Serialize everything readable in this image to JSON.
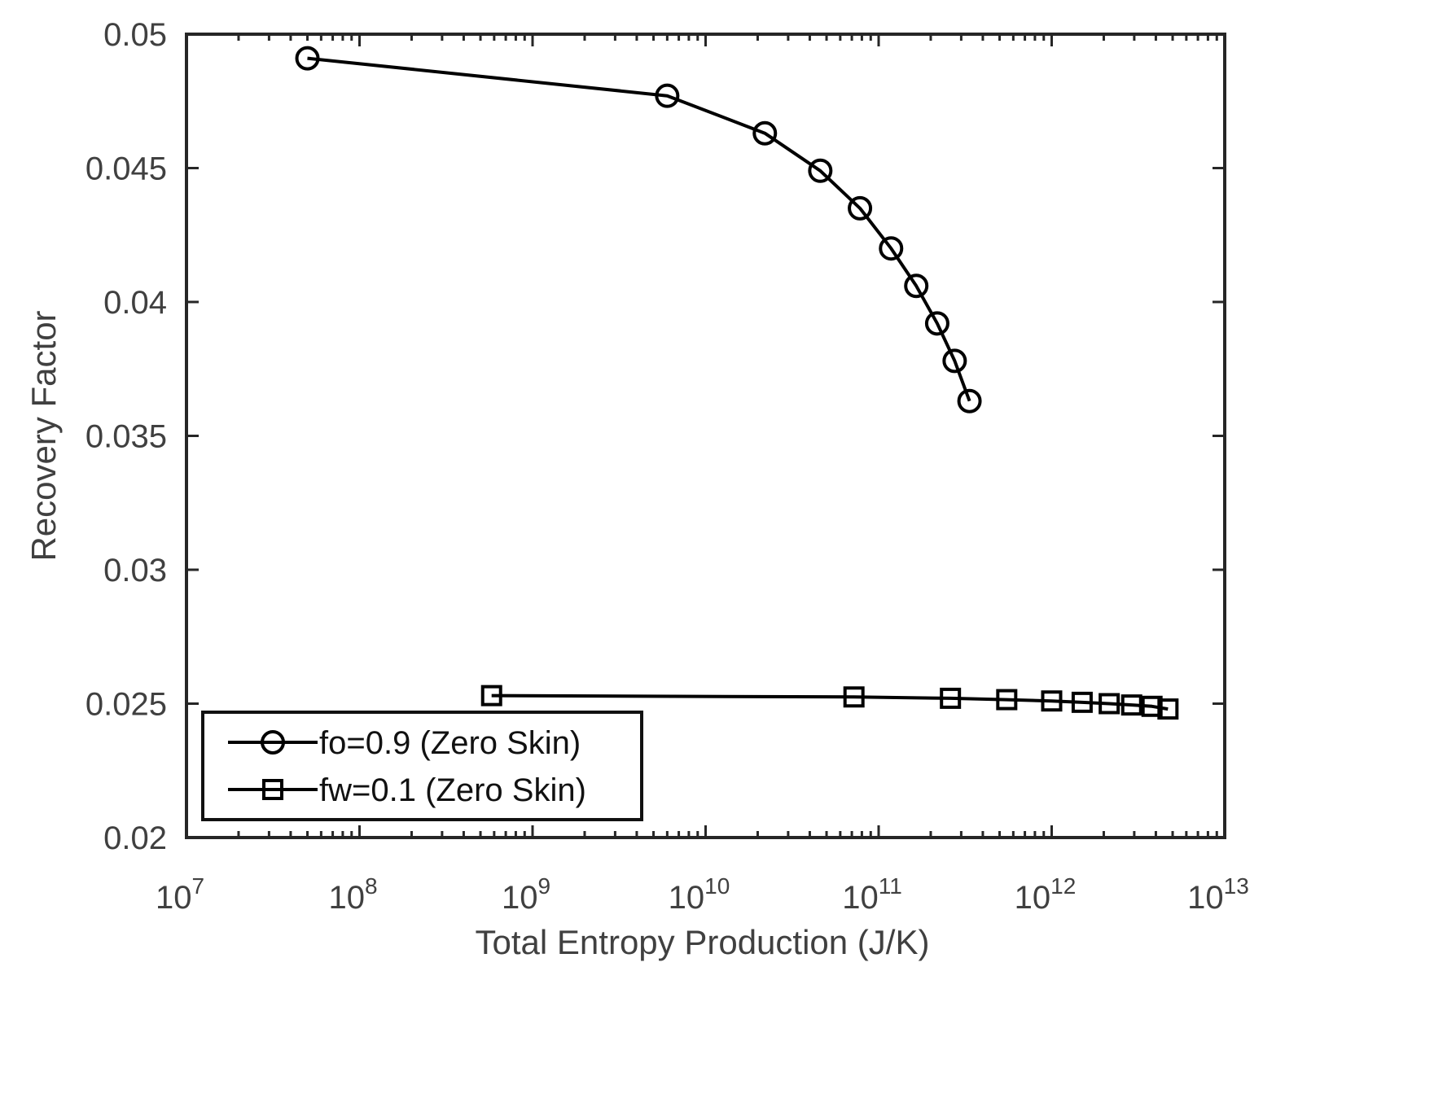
{
  "chart_data": {
    "type": "line",
    "title": "",
    "xlabel": "Total Entropy Production (J/K)",
    "ylabel": "Recovery Factor",
    "xscale": "log",
    "xlim": [
      10000000,
      10000000000000
    ],
    "ylim": [
      0.02,
      0.05
    ],
    "x_ticks": [
      {
        "base": "10",
        "exp": "7",
        "value": 10000000
      },
      {
        "base": "10",
        "exp": "8",
        "value": 100000000
      },
      {
        "base": "10",
        "exp": "9",
        "value": 1000000000
      },
      {
        "base": "10",
        "exp": "10",
        "value": 10000000000
      },
      {
        "base": "10",
        "exp": "11",
        "value": 100000000000
      },
      {
        "base": "10",
        "exp": "12",
        "value": 1000000000000
      },
      {
        "base": "10",
        "exp": "13",
        "value": 10000000000000
      }
    ],
    "y_ticks": [
      {
        "label": "0.02",
        "value": 0.02
      },
      {
        "label": "0.025",
        "value": 0.025
      },
      {
        "label": "0.03",
        "value": 0.03
      },
      {
        "label": "0.035",
        "value": 0.035
      },
      {
        "label": "0.04",
        "value": 0.04
      },
      {
        "label": "0.045",
        "value": 0.045
      },
      {
        "label": "0.05",
        "value": 0.05
      }
    ],
    "grid": false,
    "legend_position": "bottom-left",
    "series": [
      {
        "name": "fo=0.9 (Zero Skin)",
        "marker": "circle",
        "color": "#000000",
        "x": [
          50000000,
          6000000000,
          22000000000,
          46000000000,
          78000000000,
          118000000000,
          165000000000,
          218000000000,
          275000000000,
          335000000000
        ],
        "y": [
          0.0491,
          0.0477,
          0.0463,
          0.0449,
          0.0435,
          0.042,
          0.0406,
          0.0392,
          0.0378,
          0.0363
        ]
      },
      {
        "name": "fw=0.1 (Zero Skin)",
        "marker": "square",
        "color": "#000000",
        "x": [
          580000000,
          72000000000,
          260000000000,
          550000000000,
          1000000000000,
          1500000000000,
          2150000000000,
          2900000000000,
          3800000000000,
          4700000000000
        ],
        "y": [
          0.0253,
          0.02525,
          0.0252,
          0.02515,
          0.0251,
          0.02505,
          0.025,
          0.02495,
          0.0249,
          0.0248
        ]
      }
    ]
  }
}
